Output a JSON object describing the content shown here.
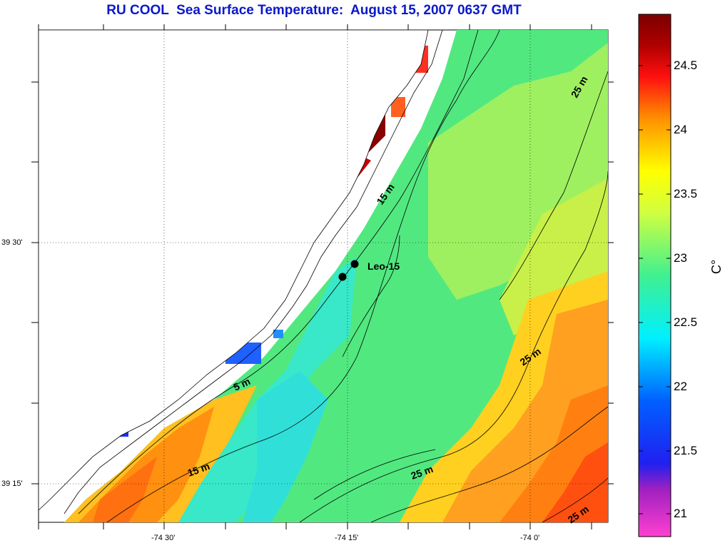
{
  "title": "RU COOL  Sea Surface Temperature:  August 15, 2007 0637 GMT",
  "colorbar": {
    "unit": "C°",
    "ticks": [
      "24.5",
      "24",
      "23.5",
      "23",
      "22.5",
      "22",
      "21.5",
      "21"
    ],
    "range": [
      20.8,
      24.9
    ]
  },
  "axes": {
    "lat_labels": [
      "39 30'",
      "39 15'"
    ],
    "lon_labels": [
      "-74 30'",
      "-74 15'",
      "-74 0'"
    ]
  },
  "station": {
    "name": "Leo-15"
  },
  "isobaths": [
    "5 m",
    "15 m",
    "15 m",
    "25 m",
    "25 m",
    "25 m",
    "25 m"
  ]
}
